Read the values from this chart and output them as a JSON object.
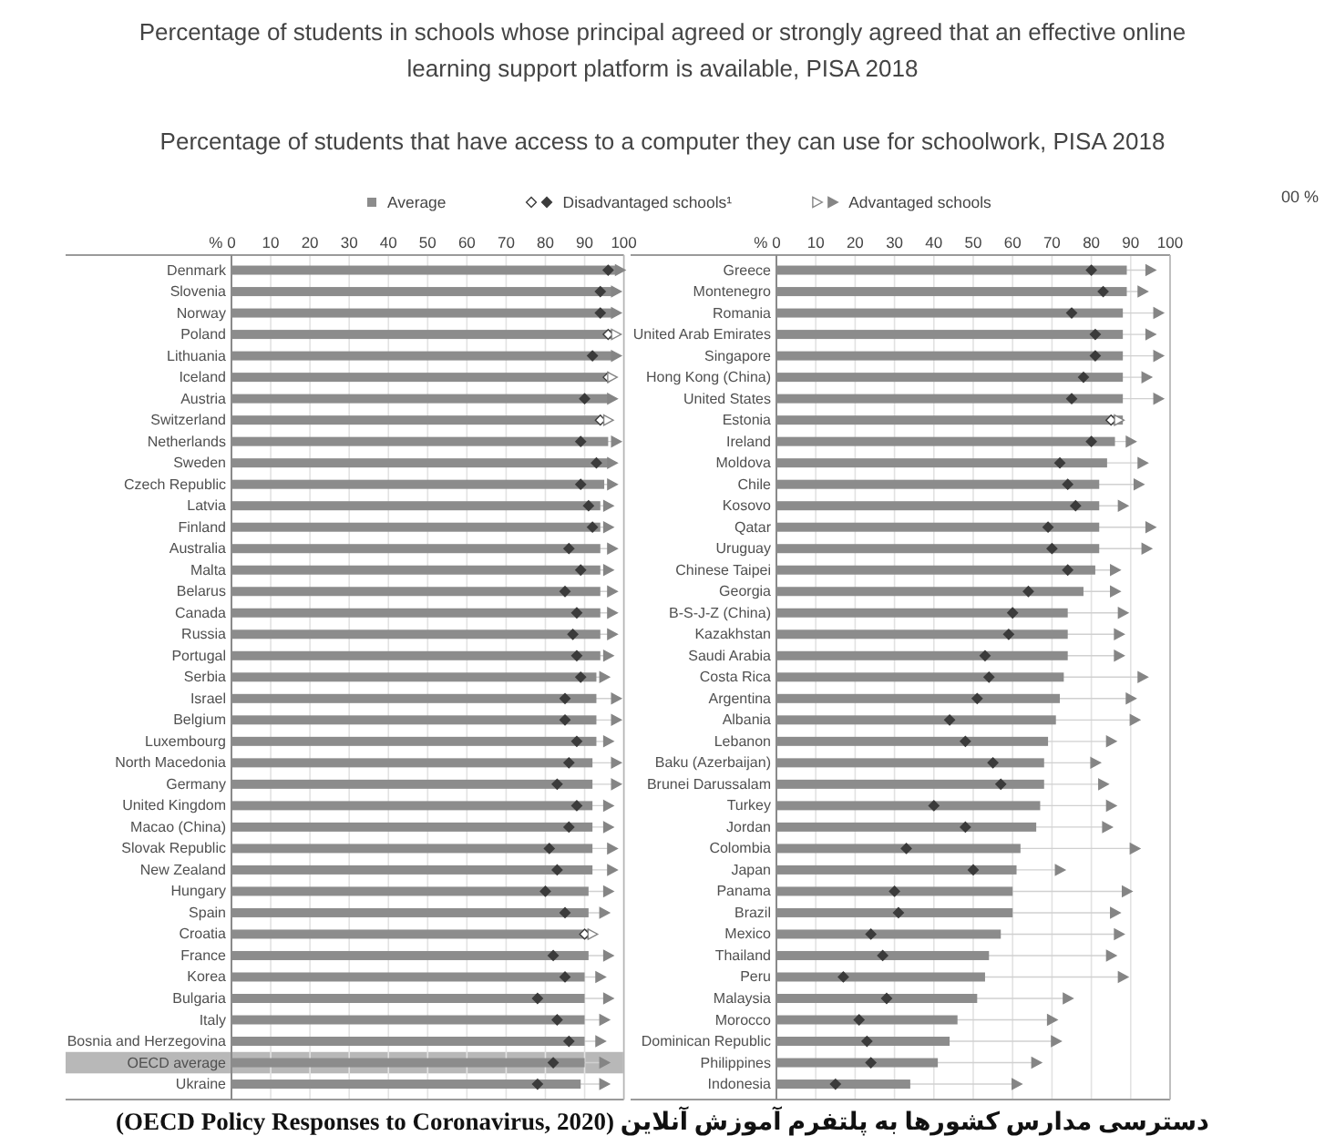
{
  "chart_data": [
    {
      "type": "bar",
      "orientation": "horizontal",
      "title": "Percentage of students in schools whose principal agreed or strongly agreed that an effective online learning support platform is available, PISA 2018",
      "subtitle": "Percentage of students that have access to a computer they can use for schoolwork, PISA 2018",
      "xlabel": "%",
      "legend": "top",
      "grid": "x",
      "xlim": [
        0,
        100
      ],
      "xticks": [
        0,
        10,
        20,
        30,
        40,
        50,
        60,
        70,
        80,
        90,
        100
      ],
      "categories": [
        "Denmark",
        "Slovenia",
        "Norway",
        "Poland",
        "Lithuania",
        "Iceland",
        "Austria",
        "Switzerland",
        "Netherlands",
        "Sweden",
        "Czech Republic",
        "Latvia",
        "Finland",
        "Australia",
        "Malta",
        "Belarus",
        "Canada",
        "Russia",
        "Portugal",
        "Serbia",
        "Israel",
        "Belgium",
        "Luxembourg",
        "North Macedonia",
        "Germany",
        "United Kingdom",
        "Macao (China)",
        "Slovak Republic",
        "New Zealand",
        "Hungary",
        "Spain",
        "Croatia",
        "France",
        "Korea",
        "Bulgaria",
        "Italy",
        "Bosnia and Herzegovina",
        "OECD average",
        "Ukraine"
      ],
      "series": [
        {
          "name": "Average",
          "type": "bar",
          "color": "#8c8c8c",
          "values": [
            98,
            97,
            97,
            97,
            97,
            96,
            96,
            94,
            96,
            96,
            95,
            94,
            94,
            94,
            94,
            94,
            94,
            94,
            94,
            93,
            93,
            93,
            93,
            92,
            92,
            92,
            92,
            92,
            92,
            91,
            91,
            91,
            91,
            90,
            90,
            90,
            90,
            90,
            89
          ]
        },
        {
          "name": "Disadvantaged schools¹",
          "type": "scatter",
          "marker": "diamond",
          "color": "#3b3b3b",
          "values": [
            96,
            94,
            94,
            96,
            92,
            96,
            90,
            94,
            89,
            93,
            89,
            91,
            92,
            86,
            89,
            85,
            88,
            87,
            88,
            89,
            85,
            85,
            88,
            86,
            83,
            88,
            86,
            81,
            83,
            80,
            85,
            90,
            82,
            85,
            78,
            83,
            86,
            82,
            78
          ],
          "colors": [
            "#3b3b3b",
            "#3b3b3b",
            "#3b3b3b",
            "#ffffff",
            "#3b3b3b",
            "#ffffff",
            "#3b3b3b",
            "#ffffff",
            "#3b3b3b",
            "#3b3b3b",
            "#3b3b3b",
            "#3b3b3b",
            "#3b3b3b",
            "#3b3b3b",
            "#3b3b3b",
            "#3b3b3b",
            "#3b3b3b",
            "#3b3b3b",
            "#3b3b3b",
            "#3b3b3b",
            "#3b3b3b",
            "#3b3b3b",
            "#3b3b3b",
            "#3b3b3b",
            "#3b3b3b",
            "#3b3b3b",
            "#3b3b3b",
            "#3b3b3b",
            "#3b3b3b",
            "#3b3b3b",
            "#3b3b3b",
            "#ffffff",
            "#3b3b3b",
            "#3b3b3b",
            "#3b3b3b",
            "#3b3b3b",
            "#3b3b3b",
            "#3b3b3b",
            "#3b3b3b"
          ]
        },
        {
          "name": "Advantaged schools",
          "type": "scatter",
          "marker": "triangle",
          "color": "#858585",
          "values": [
            99,
            98,
            98,
            98,
            98,
            97,
            97,
            96,
            98,
            97,
            97,
            96,
            96,
            97,
            96,
            97,
            97,
            97,
            96,
            95,
            98,
            98,
            96,
            98,
            98,
            96,
            96,
            97,
            97,
            96,
            95,
            92,
            96,
            94,
            96,
            95,
            94,
            95,
            95
          ],
          "colors": [
            "#858585",
            "#858585",
            "#858585",
            "#ffffff",
            "#858585",
            "#ffffff",
            "#858585",
            "#ffffff",
            "#858585",
            "#858585",
            "#858585",
            "#858585",
            "#858585",
            "#858585",
            "#858585",
            "#858585",
            "#858585",
            "#858585",
            "#858585",
            "#858585",
            "#858585",
            "#858585",
            "#858585",
            "#858585",
            "#858585",
            "#858585",
            "#858585",
            "#858585",
            "#858585",
            "#858585",
            "#858585",
            "#ffffff",
            "#858585",
            "#858585",
            "#858585",
            "#858585",
            "#858585",
            "#858585",
            "#858585"
          ]
        }
      ],
      "bands": [
        {
          "axis": "y",
          "from": "OECD average",
          "to": "OECD average",
          "color": "#b8b8b8"
        }
      ],
      "annotations": [
        "دسترسی مدارس کشورها به پلتفرم آموزش آنلاین (OECD Policy Responses to Coronavirus, 2020)"
      ]
    },
    {
      "type": "bar",
      "orientation": "horizontal",
      "xlabel": "%",
      "grid": "x",
      "xlim": [
        0,
        100
      ],
      "xticks": [
        0,
        10,
        20,
        30,
        40,
        50,
        60,
        70,
        80,
        90,
        100
      ],
      "categories": [
        "Greece",
        "Montenegro",
        "Romania",
        "United Arab Emirates",
        "Singapore",
        "Hong Kong (China)",
        "United States",
        "Estonia",
        "Ireland",
        "Moldova",
        "Chile",
        "Kosovo",
        "Qatar",
        "Uruguay",
        "Chinese Taipei",
        "Georgia",
        "B-S-J-Z (China)",
        "Kazakhstan",
        "Saudi Arabia",
        "Costa Rica",
        "Argentina",
        "Albania",
        "Lebanon",
        "Baku (Azerbaijan)",
        "Brunei Darussalam",
        "Turkey",
        "Jordan",
        "Colombia",
        "Japan",
        "Panama",
        "Brazil",
        "Mexico",
        "Thailand",
        "Peru",
        "Malaysia",
        "Morocco",
        "Dominican Republic",
        "Philippines",
        "Indonesia"
      ],
      "series": [
        {
          "type": "bar",
          "color": "#8c8c8c",
          "values": [
            89,
            89,
            88,
            88,
            88,
            88,
            88,
            88,
            86,
            84,
            82,
            82,
            82,
            82,
            81,
            78,
            74,
            74,
            74,
            73,
            72,
            71,
            69,
            68,
            68,
            67,
            66,
            62,
            61,
            60,
            60,
            57,
            54,
            53,
            51,
            46,
            44,
            41,
            34
          ]
        },
        {
          "type": "scatter",
          "marker": "diamond",
          "color": "#3b3b3b",
          "values": [
            80,
            83,
            75,
            81,
            81,
            78,
            75,
            85,
            80,
            72,
            74,
            76,
            69,
            70,
            74,
            64,
            60,
            59,
            53,
            54,
            51,
            44,
            48,
            55,
            57,
            40,
            48,
            33,
            50,
            30,
            31,
            24,
            27,
            17,
            28,
            21,
            23,
            24,
            15
          ],
          "colors": [
            "#3b3b3b",
            "#3b3b3b",
            "#3b3b3b",
            "#3b3b3b",
            "#3b3b3b",
            "#3b3b3b",
            "#3b3b3b",
            "#ffffff",
            "#3b3b3b",
            "#3b3b3b",
            "#3b3b3b",
            "#3b3b3b",
            "#3b3b3b",
            "#3b3b3b",
            "#3b3b3b",
            "#3b3b3b",
            "#3b3b3b",
            "#3b3b3b",
            "#3b3b3b",
            "#3b3b3b",
            "#3b3b3b",
            "#3b3b3b",
            "#3b3b3b",
            "#3b3b3b",
            "#3b3b3b",
            "#3b3b3b",
            "#3b3b3b",
            "#3b3b3b",
            "#3b3b3b",
            "#3b3b3b",
            "#3b3b3b",
            "#3b3b3b",
            "#3b3b3b",
            "#3b3b3b",
            "#3b3b3b",
            "#3b3b3b",
            "#3b3b3b",
            "#3b3b3b",
            "#3b3b3b"
          ]
        },
        {
          "type": "scatter",
          "marker": "triangle",
          "color": "#858585",
          "values": [
            95,
            93,
            97,
            95,
            97,
            94,
            97,
            87,
            90,
            93,
            92,
            88,
            95,
            94,
            86,
            86,
            88,
            87,
            87,
            93,
            90,
            91,
            85,
            81,
            83,
            85,
            84,
            91,
            72,
            89,
            86,
            87,
            85,
            88,
            74,
            70,
            71,
            66,
            61
          ],
          "colors": [
            "#858585",
            "#858585",
            "#858585",
            "#858585",
            "#858585",
            "#858585",
            "#858585",
            "#ffffff",
            "#858585",
            "#858585",
            "#858585",
            "#858585",
            "#858585",
            "#858585",
            "#858585",
            "#858585",
            "#858585",
            "#858585",
            "#858585",
            "#858585",
            "#858585",
            "#858585",
            "#858585",
            "#858585",
            "#858585",
            "#858585",
            "#858585",
            "#858585",
            "#858585",
            "#858585",
            "#858585",
            "#858585",
            "#858585",
            "#858585",
            "#858585",
            "#858585",
            "#858585",
            "#858585",
            "#858585"
          ]
        }
      ],
      "annotations": [
        "00 %"
      ]
    }
  ]
}
